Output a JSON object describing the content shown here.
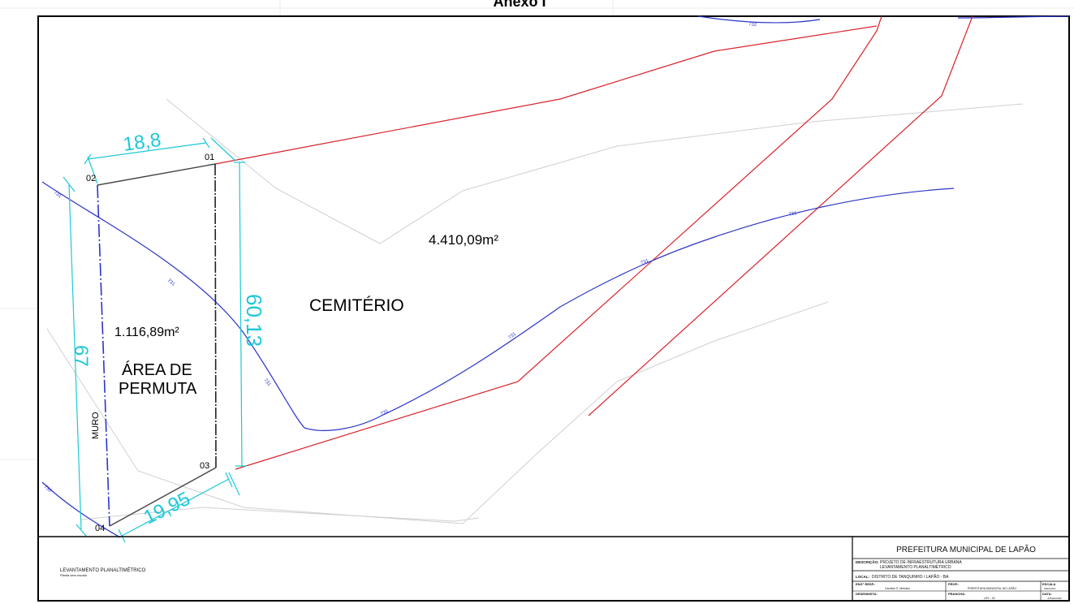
{
  "header": {
    "title": "Anexo I"
  },
  "map": {
    "total_area": "4.410,09m²",
    "cemetery_label": "CEMITÉRIO",
    "permuta_area": "1.116,89m²",
    "permuta_label_line1": "ÁREA DE",
    "permuta_label_line2": "PERMUTA",
    "wall_label": "MURO",
    "points": {
      "p01": "01",
      "p02": "02",
      "p03": "03",
      "p04": "04"
    },
    "dimensions": {
      "top": "18,8",
      "right": "60,13",
      "left": "67",
      "bottom": "19,95"
    },
    "contour_labels": {
      "c731": "731",
      "c732": "732",
      "c730": "730"
    }
  },
  "title_block": {
    "left_title": "LEVANTAMENTO PLANALTIMÉTRICO",
    "left_sub": "Planta sem escala",
    "org": "PREFEITURA MUNICIPAL DE LAPÃO",
    "desc_label": "DESCRIÇÃO:",
    "desc_line1": "PROJETO DE INFRAESTRUTURA URBANA",
    "desc_line2": "LEVANTAMENTO PLANALTIMÉTRICO",
    "local_label": "LOCAL:",
    "local_value": "DISTRITO DE TANQUINHO / LAPÃO - BA",
    "resp_label": "ENG° RESP.:",
    "resp_value": "Caroline S. Mendes",
    "prop_label": "PROP.:",
    "prop_value": "PREFEITURA MUNICIPAL DE LAPÃO",
    "escala_label": "ESCALA",
    "escala_value": "INDICADA",
    "desenhista_label": "DESENHISTA:",
    "prancha_label": "PRANCHA:",
    "prancha_value": "LEV - 02",
    "data_label": "DATA:",
    "data_value": "JUNHO/2022"
  }
}
